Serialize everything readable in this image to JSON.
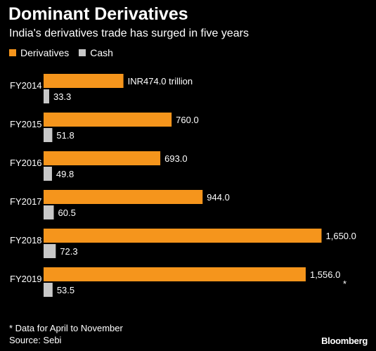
{
  "chart_data": {
    "type": "bar",
    "orientation": "horizontal",
    "title": "Dominant Derivatives",
    "subtitle": "India's derivatives trade has surged in five years",
    "categories": [
      "FY2014",
      "FY2015",
      "FY2016",
      "FY2017",
      "FY2018",
      "FY2019"
    ],
    "series": [
      {
        "name": "Derivatives",
        "color": "#f5951c",
        "values": [
          474.0,
          760.0,
          693.0,
          944.0,
          1650.0,
          1556.0
        ],
        "labels": [
          "INR474.0 trillion",
          "760.0",
          "693.0",
          "944.0",
          "1,650.0",
          "1,556.0"
        ]
      },
      {
        "name": "Cash",
        "color": "#c8c8c8",
        "values": [
          33.3,
          51.8,
          49.8,
          60.5,
          72.3,
          53.5
        ],
        "labels": [
          "33.3",
          "51.8",
          "49.8",
          "60.5",
          "72.3",
          "53.5"
        ]
      }
    ],
    "annotation": {
      "category": "FY2019",
      "marker": "*"
    },
    "legend_position": "top-left",
    "grid": false,
    "xlabel": "",
    "ylabel": ""
  },
  "footnote": "* Data for April to November",
  "source": "Source: Sebi",
  "brand": "Bloomberg"
}
